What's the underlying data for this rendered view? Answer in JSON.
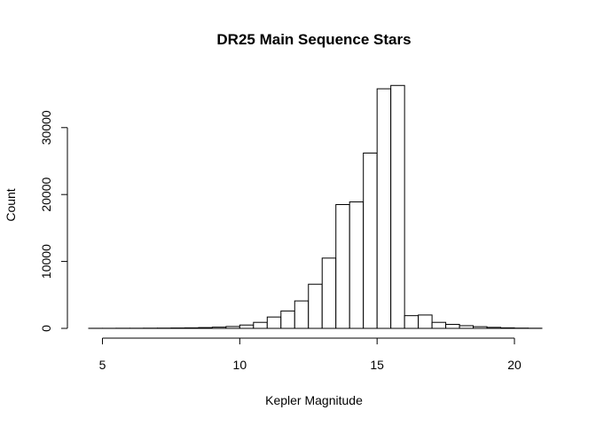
{
  "chart_data": {
    "type": "bar",
    "title": "DR25 Main Sequence Stars",
    "xlabel": "Kepler Magnitude",
    "ylabel": "Count",
    "xlim": [
      4.5,
      21
    ],
    "ylim": [
      0,
      37000
    ],
    "xticks": [
      5,
      10,
      15,
      20
    ],
    "yticks": [
      0,
      10000,
      20000,
      30000
    ],
    "grid": false,
    "bin_edges": [
      4.5,
      5,
      5.5,
      6,
      6.5,
      7,
      7.5,
      8,
      8.5,
      9,
      9.5,
      10,
      10.5,
      11,
      11.5,
      12,
      12.5,
      13,
      13.5,
      14,
      14.5,
      15,
      15.5,
      16,
      16.5,
      17,
      17.5,
      18,
      18.5,
      19,
      19.5,
      20,
      20.5,
      21
    ],
    "values": [
      10,
      10,
      20,
      20,
      30,
      40,
      60,
      80,
      120,
      180,
      280,
      500,
      900,
      1700,
      2600,
      4100,
      6600,
      10500,
      18500,
      18900,
      26200,
      35800,
      36300,
      1900,
      2000,
      900,
      600,
      400,
      250,
      150,
      80,
      40,
      20
    ]
  }
}
